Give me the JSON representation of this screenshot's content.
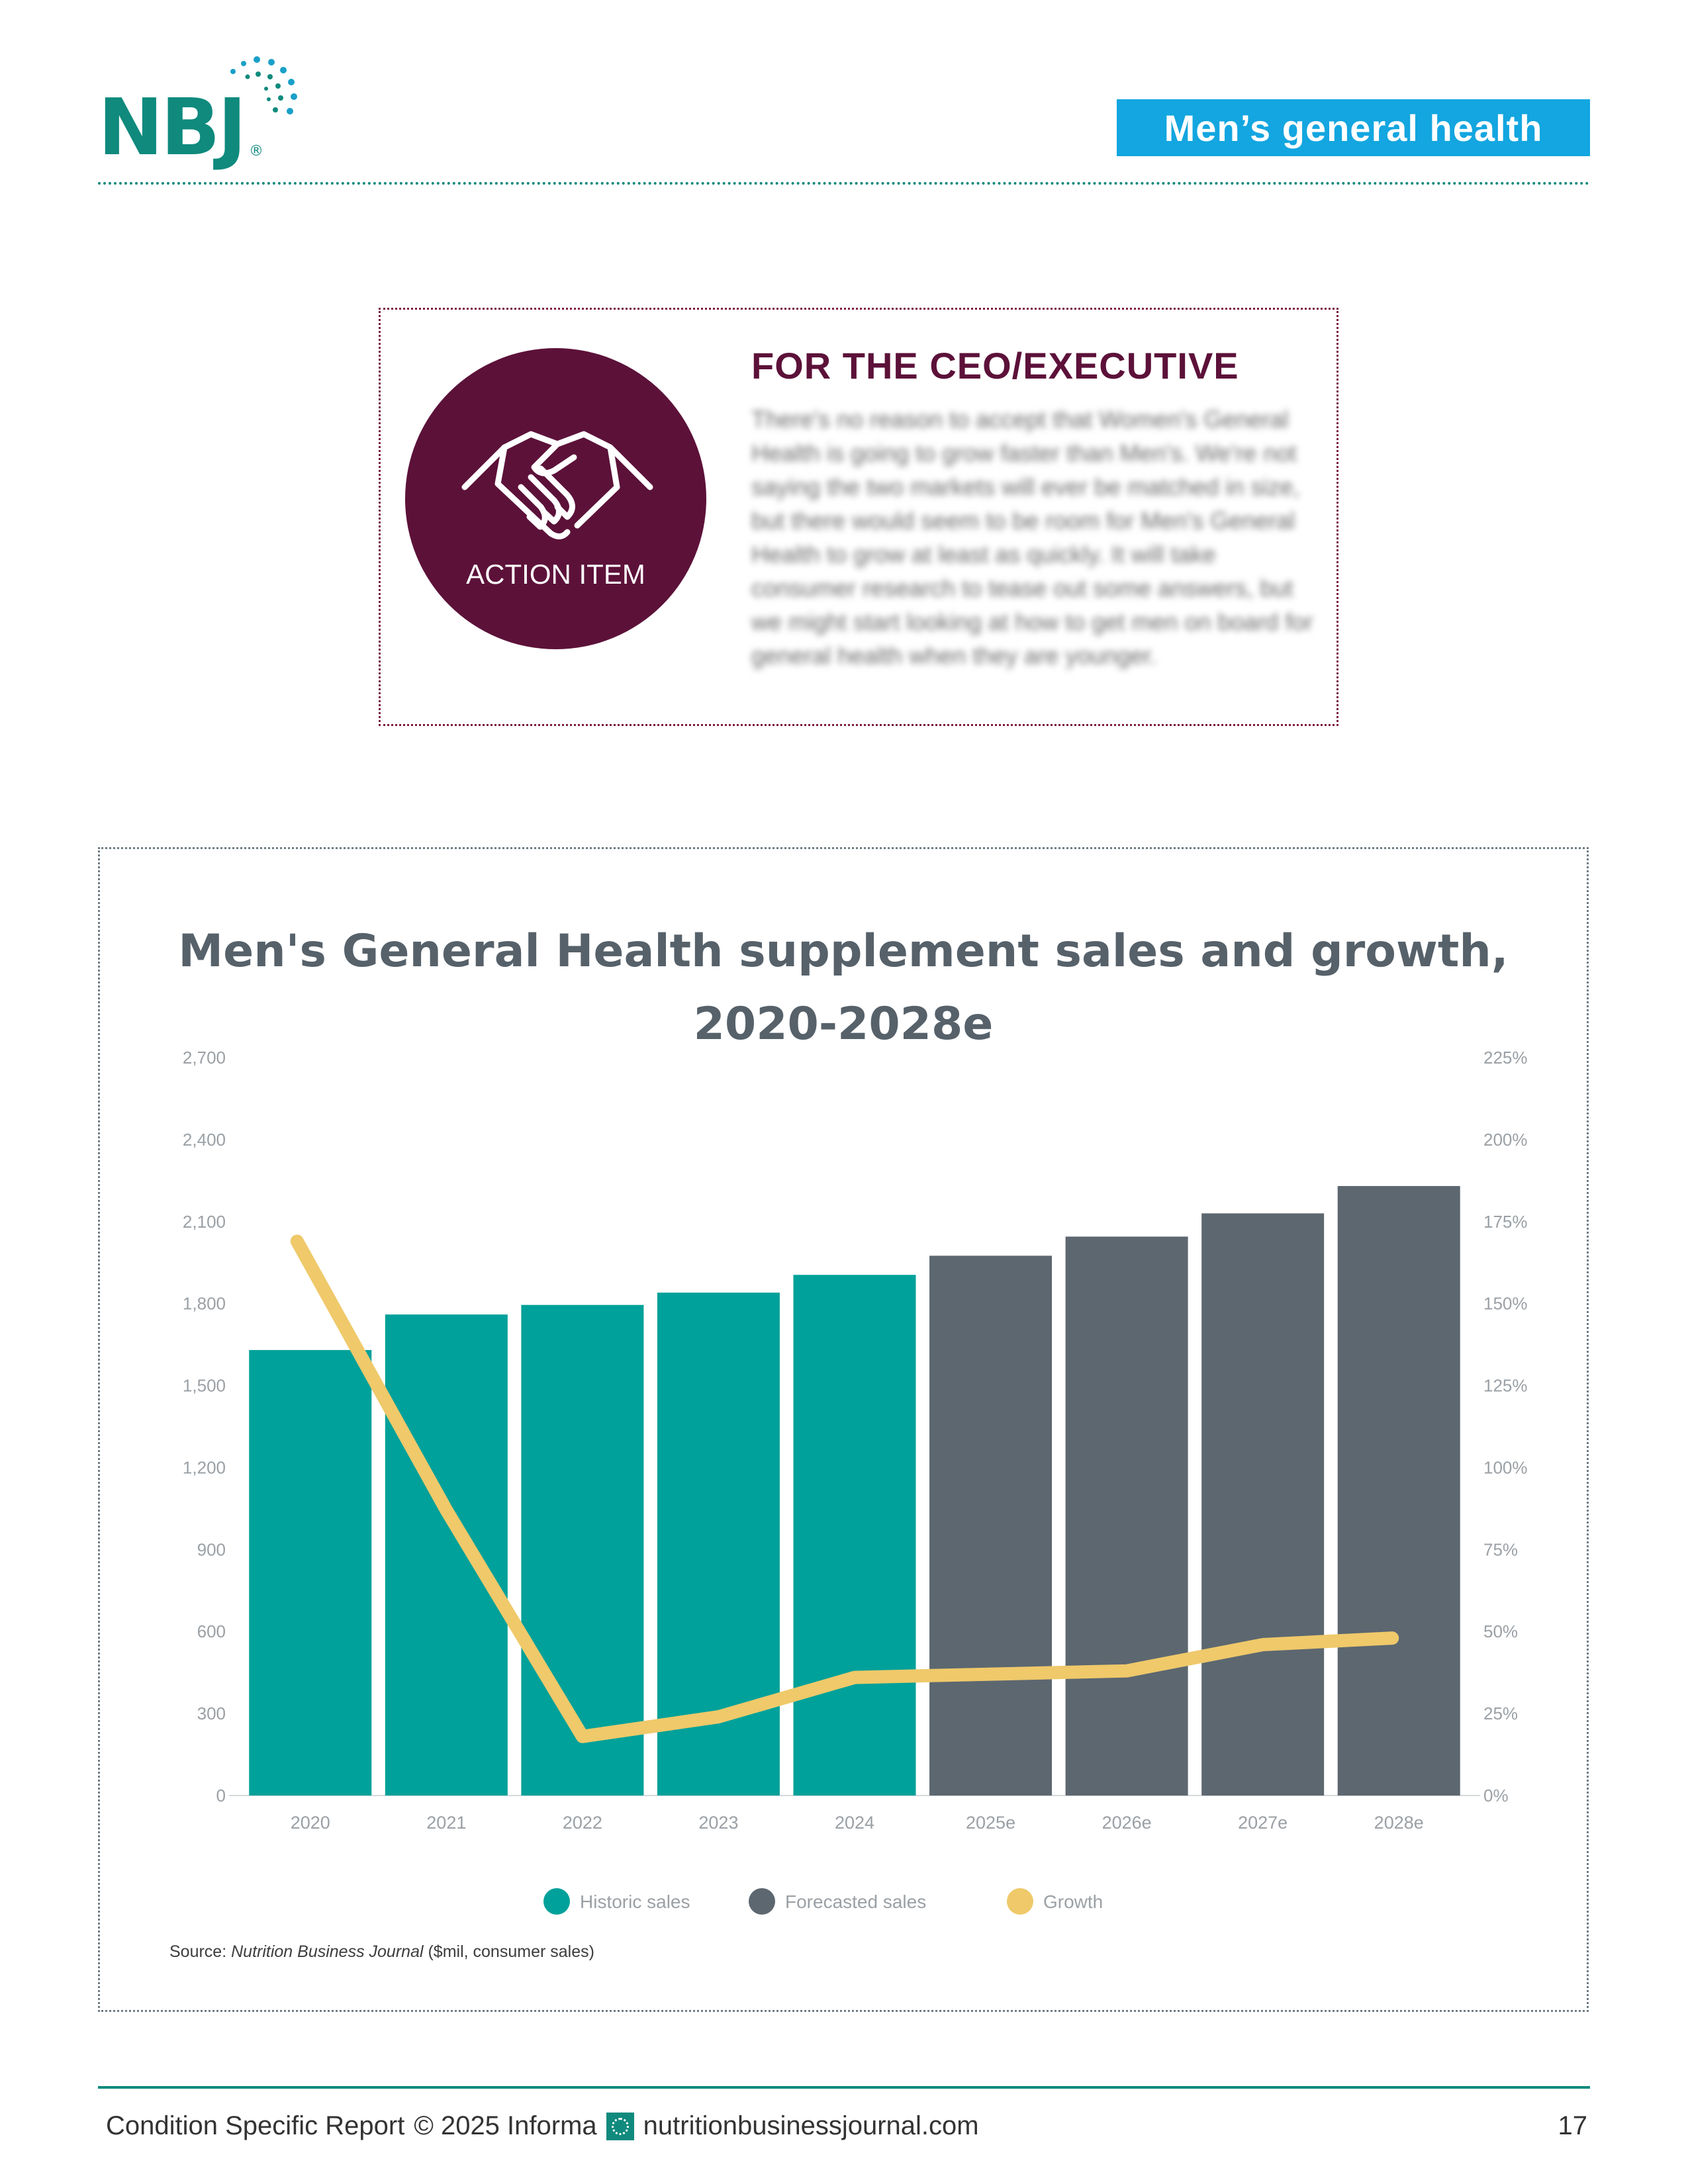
{
  "header": {
    "logo_text": "NBJ",
    "logo_reg": "®",
    "section_tag": "Men’s general health"
  },
  "action_item": {
    "icon": "handshake-icon",
    "label": "ACTION ITEM",
    "heading": "FOR THE CEO/EXECUTIVE",
    "body": "There's no reason to accept that Women's General Health is going to grow faster than Men's. We're not saying the two markets will ever be matched in size, but there would seem to be room for Men's General Health to grow at least as quickly. It will take consumer research to tease out some answers, but we might start looking at how to get men on board for general health when they are younger."
  },
  "chart_data": {
    "type": "bar",
    "title_line1": "Men's General Health supplement sales and growth,",
    "title_line2": "2020-2028e",
    "categories": [
      "2020",
      "2021",
      "2022",
      "2023",
      "2024",
      "2025e",
      "2026e",
      "2027e",
      "2028e"
    ],
    "series": [
      {
        "name": "Historic sales",
        "type": "bar",
        "axis": "left",
        "color": "#00a19a",
        "values": [
          1630,
          1760,
          1795,
          1840,
          1905,
          null,
          null,
          null,
          null
        ]
      },
      {
        "name": "Forecasted sales",
        "type": "bar",
        "axis": "left",
        "color": "#5c6770",
        "values": [
          null,
          null,
          null,
          null,
          null,
          1975,
          2045,
          2130,
          2230
        ]
      },
      {
        "name": "Growth",
        "type": "line",
        "axis": "right",
        "color": "#efc96a",
        "values": [
          169,
          87,
          18,
          24,
          36,
          37,
          38,
          46,
          48
        ]
      }
    ],
    "y_left": {
      "ticks": [
        "0",
        "300",
        "600",
        "900",
        "1,200",
        "1,500",
        "1,800",
        "2,100",
        "2,400",
        "2,700"
      ],
      "ylim": [
        0,
        2700
      ]
    },
    "y_right": {
      "ticks": [
        "0%",
        "25%",
        "50%",
        "75%",
        "100%",
        "125%",
        "150%",
        "175%",
        "200%",
        "225%"
      ],
      "ylim": [
        0,
        225
      ]
    },
    "legend": [
      "Historic sales",
      "Forecasted sales",
      "Growth"
    ],
    "legend_position": "bottom",
    "grid": false,
    "source_prefix": "Source: ",
    "source_journal": "Nutrition Business Journal",
    "source_suffix": " ($mil, consumer sales)"
  },
  "footer": {
    "report": "Condition Specific Report",
    "copyright": "© 2025 Informa",
    "url": "nutritionbusinessjournal.com",
    "page": "17"
  }
}
